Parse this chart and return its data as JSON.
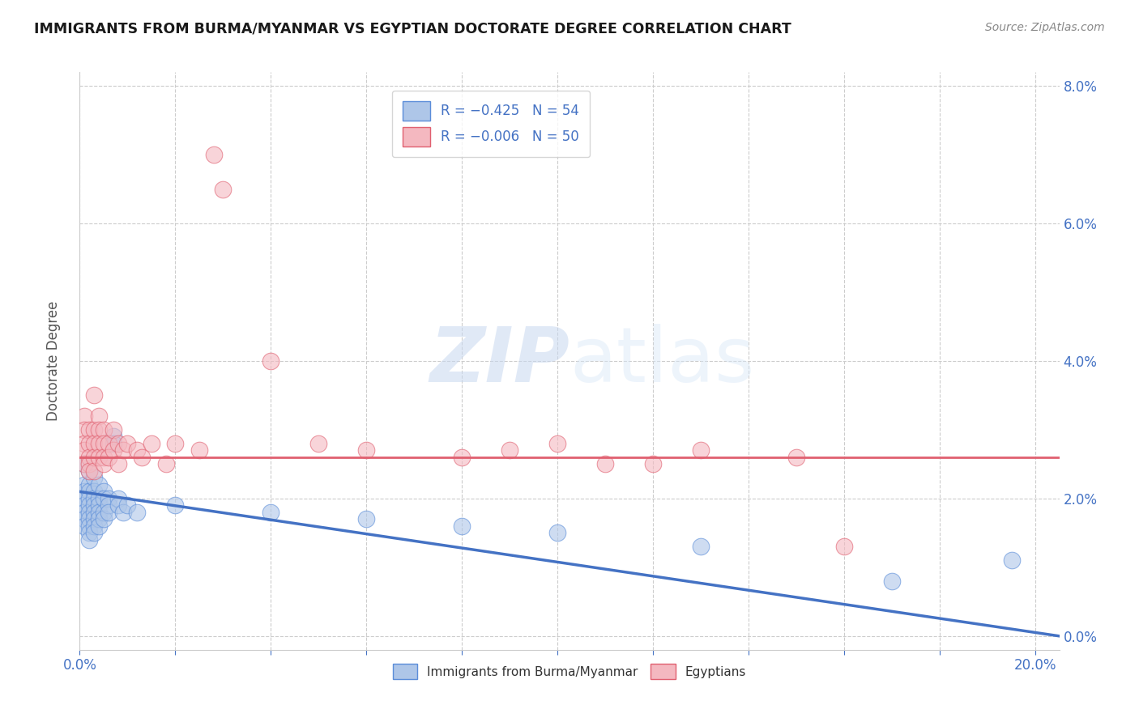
{
  "title": "IMMIGRANTS FROM BURMA/MYANMAR VS EGYPTIAN DOCTORATE DEGREE CORRELATION CHART",
  "source": "Source: ZipAtlas.com",
  "ylabel": "Doctorate Degree",
  "xlim": [
    0.0,
    0.205
  ],
  "ylim": [
    -0.002,
    0.082
  ],
  "xticks": [
    0.0,
    0.02,
    0.04,
    0.06,
    0.08,
    0.1,
    0.12,
    0.14,
    0.16,
    0.18,
    0.2
  ],
  "yticks": [
    0.0,
    0.02,
    0.04,
    0.06,
    0.08
  ],
  "yticks_grid": [
    0.0,
    0.02,
    0.04,
    0.06,
    0.08
  ],
  "blue_color": "#aec6e8",
  "pink_color": "#f4b8c0",
  "blue_edge_color": "#5b8dd9",
  "pink_edge_color": "#e06070",
  "blue_line_color": "#4472c4",
  "pink_line_color": "#e06070",
  "blue_scatter": [
    [
      0.001,
      0.025
    ],
    [
      0.001,
      0.022
    ],
    [
      0.001,
      0.021
    ],
    [
      0.001,
      0.02
    ],
    [
      0.001,
      0.019
    ],
    [
      0.001,
      0.018
    ],
    [
      0.001,
      0.017
    ],
    [
      0.001,
      0.016
    ],
    [
      0.002,
      0.024
    ],
    [
      0.002,
      0.022
    ],
    [
      0.002,
      0.021
    ],
    [
      0.002,
      0.02
    ],
    [
      0.002,
      0.019
    ],
    [
      0.002,
      0.018
    ],
    [
      0.002,
      0.017
    ],
    [
      0.002,
      0.016
    ],
    [
      0.002,
      0.015
    ],
    [
      0.002,
      0.014
    ],
    [
      0.003,
      0.023
    ],
    [
      0.003,
      0.021
    ],
    [
      0.003,
      0.02
    ],
    [
      0.003,
      0.019
    ],
    [
      0.003,
      0.018
    ],
    [
      0.003,
      0.017
    ],
    [
      0.003,
      0.016
    ],
    [
      0.003,
      0.015
    ],
    [
      0.004,
      0.022
    ],
    [
      0.004,
      0.02
    ],
    [
      0.004,
      0.019
    ],
    [
      0.004,
      0.018
    ],
    [
      0.004,
      0.017
    ],
    [
      0.004,
      0.016
    ],
    [
      0.005,
      0.021
    ],
    [
      0.005,
      0.02
    ],
    [
      0.005,
      0.018
    ],
    [
      0.005,
      0.017
    ],
    [
      0.006,
      0.02
    ],
    [
      0.006,
      0.019
    ],
    [
      0.006,
      0.018
    ],
    [
      0.007,
      0.029
    ],
    [
      0.007,
      0.028
    ],
    [
      0.008,
      0.02
    ],
    [
      0.008,
      0.019
    ],
    [
      0.009,
      0.018
    ],
    [
      0.01,
      0.019
    ],
    [
      0.012,
      0.018
    ],
    [
      0.02,
      0.019
    ],
    [
      0.04,
      0.018
    ],
    [
      0.06,
      0.017
    ],
    [
      0.08,
      0.016
    ],
    [
      0.1,
      0.015
    ],
    [
      0.13,
      0.013
    ],
    [
      0.17,
      0.008
    ],
    [
      0.195,
      0.011
    ]
  ],
  "pink_scatter": [
    [
      0.001,
      0.032
    ],
    [
      0.001,
      0.03
    ],
    [
      0.001,
      0.028
    ],
    [
      0.001,
      0.027
    ],
    [
      0.001,
      0.025
    ],
    [
      0.002,
      0.03
    ],
    [
      0.002,
      0.028
    ],
    [
      0.002,
      0.026
    ],
    [
      0.002,
      0.025
    ],
    [
      0.002,
      0.024
    ],
    [
      0.003,
      0.035
    ],
    [
      0.003,
      0.03
    ],
    [
      0.003,
      0.028
    ],
    [
      0.003,
      0.026
    ],
    [
      0.003,
      0.024
    ],
    [
      0.004,
      0.032
    ],
    [
      0.004,
      0.03
    ],
    [
      0.004,
      0.028
    ],
    [
      0.004,
      0.026
    ],
    [
      0.005,
      0.03
    ],
    [
      0.005,
      0.028
    ],
    [
      0.005,
      0.026
    ],
    [
      0.005,
      0.025
    ],
    [
      0.006,
      0.028
    ],
    [
      0.006,
      0.026
    ],
    [
      0.007,
      0.03
    ],
    [
      0.007,
      0.027
    ],
    [
      0.008,
      0.028
    ],
    [
      0.008,
      0.025
    ],
    [
      0.009,
      0.027
    ],
    [
      0.01,
      0.028
    ],
    [
      0.012,
      0.027
    ],
    [
      0.013,
      0.026
    ],
    [
      0.015,
      0.028
    ],
    [
      0.018,
      0.025
    ],
    [
      0.02,
      0.028
    ],
    [
      0.025,
      0.027
    ],
    [
      0.028,
      0.07
    ],
    [
      0.03,
      0.065
    ],
    [
      0.04,
      0.04
    ],
    [
      0.05,
      0.028
    ],
    [
      0.06,
      0.027
    ],
    [
      0.08,
      0.026
    ],
    [
      0.09,
      0.027
    ],
    [
      0.1,
      0.028
    ],
    [
      0.11,
      0.025
    ],
    [
      0.13,
      0.027
    ],
    [
      0.15,
      0.026
    ],
    [
      0.16,
      0.013
    ],
    [
      0.12,
      0.025
    ]
  ],
  "blue_trend_x": [
    0.0,
    0.205
  ],
  "blue_trend_y": [
    0.021,
    0.0
  ],
  "pink_trend_x": [
    0.0,
    0.205
  ],
  "pink_trend_y": [
    0.026,
    0.026
  ],
  "watermark_zip": "ZIP",
  "watermark_atlas": "atlas",
  "legend_blue_label": "R = −0.425   N = 54",
  "legend_pink_label": "R = −0.006   N = 50",
  "bottom_legend_blue": "Immigrants from Burma/Myanmar",
  "bottom_legend_pink": "Egyptians"
}
